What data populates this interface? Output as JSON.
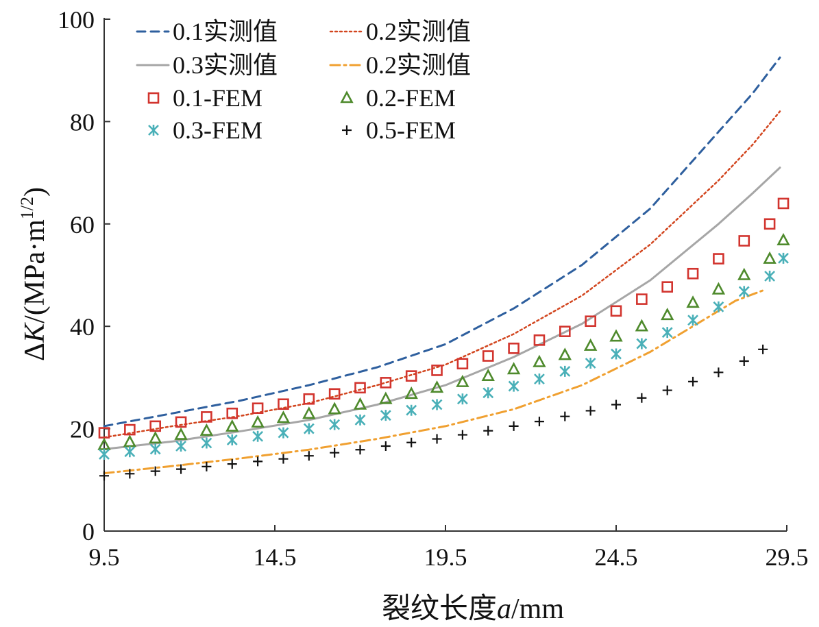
{
  "chart_data": {
    "type": "line",
    "title": "",
    "xlabel": "裂纹长度a/mm",
    "xlabel_parts": {
      "text": "裂纹长度",
      "var": "a",
      "unit": "/mm"
    },
    "ylabel": "ΔK/(MPa·m1/2)",
    "ylabel_parts": {
      "delta": "Δ",
      "var": "K",
      "unit": "/(MPa·m",
      "exp": "1/2",
      "close": ")"
    },
    "xlim": [
      9.5,
      29.5
    ],
    "ylim": [
      0,
      100
    ],
    "xticks": [
      "9.5",
      "14.5",
      "19.5",
      "24.5",
      "29.5"
    ],
    "yticks": [
      "0",
      "20",
      "40",
      "60",
      "80",
      "100"
    ],
    "grid": false,
    "legend_position": "top-left",
    "series": [
      {
        "name": "0.1实测值",
        "kind": "line",
        "style": "dash",
        "color": "#2e5f9e",
        "x": [
          9.5,
          11.5,
          13.5,
          15.5,
          17.5,
          19.5,
          21.5,
          23.5,
          25.5,
          27.5,
          28.5,
          29.3
        ],
        "y": [
          20.5,
          23.0,
          25.5,
          28.5,
          32.0,
          36.5,
          43.5,
          52.0,
          63.0,
          78.0,
          85.5,
          92.5
        ]
      },
      {
        "name": "0.2实测值",
        "kind": "line",
        "style": "dot",
        "color": "#d2451e",
        "x": [
          9.5,
          11.5,
          13.5,
          15.5,
          17.5,
          19.5,
          21.5,
          23.5,
          25.5,
          27.5,
          28.5,
          29.3
        ],
        "y": [
          18.3,
          20.5,
          22.5,
          25.0,
          28.5,
          32.5,
          38.5,
          46.0,
          56.0,
          68.5,
          75.5,
          82.0
        ]
      },
      {
        "name": "0.3实测值",
        "kind": "line",
        "style": "solid",
        "color": "#a6a6a6",
        "x": [
          9.5,
          11.5,
          13.5,
          15.5,
          17.5,
          19.5,
          21.5,
          23.5,
          25.5,
          27.5,
          28.5,
          29.3
        ],
        "y": [
          16.0,
          17.5,
          19.5,
          21.7,
          24.7,
          28.5,
          34.0,
          40.5,
          49.0,
          60.0,
          66.0,
          71.0
        ]
      },
      {
        "name": "0.2实测值",
        "kind": "line",
        "style": "dashdot",
        "color": "#f0a030",
        "x": [
          9.5,
          11.5,
          13.5,
          15.5,
          17.5,
          19.5,
          21.5,
          23.5,
          25.5,
          27.0,
          28.0,
          28.8
        ],
        "y": [
          11.3,
          12.7,
          14.2,
          15.9,
          18.0,
          20.5,
          23.8,
          28.5,
          35.0,
          41.0,
          45.0,
          47.0
        ]
      },
      {
        "name": "0.1-FEM",
        "kind": "marker",
        "marker": "square",
        "color": "#d2342e",
        "x": [
          9.5,
          10.25,
          11.0,
          11.75,
          12.5,
          13.25,
          14.0,
          14.75,
          15.5,
          16.25,
          17.0,
          17.75,
          18.5,
          19.25,
          20.0,
          20.75,
          21.5,
          22.25,
          23.0,
          23.75,
          24.5,
          25.25,
          26.0,
          26.75,
          27.5,
          28.25,
          29.0,
          29.4
        ],
        "y": [
          19.2,
          19.8,
          20.5,
          21.3,
          22.3,
          23.0,
          24.0,
          24.8,
          25.8,
          26.8,
          28.0,
          29.0,
          30.3,
          31.4,
          32.7,
          34.2,
          35.7,
          37.3,
          39.0,
          41.0,
          43.0,
          45.3,
          47.7,
          50.3,
          53.2,
          56.7,
          60.0,
          64.0
        ]
      },
      {
        "name": "0.2-FEM",
        "kind": "marker",
        "marker": "triangle",
        "color": "#4e8a2c",
        "x": [
          9.5,
          10.25,
          11.0,
          11.75,
          12.5,
          13.25,
          14.0,
          14.75,
          15.5,
          16.25,
          17.0,
          17.75,
          18.5,
          19.25,
          20.0,
          20.75,
          21.5,
          22.25,
          23.0,
          23.75,
          24.5,
          25.25,
          26.0,
          26.75,
          27.5,
          28.25,
          29.0,
          29.4
        ],
        "y": [
          16.8,
          17.4,
          18.1,
          18.8,
          19.6,
          20.4,
          21.2,
          22.1,
          22.9,
          23.8,
          24.7,
          25.8,
          26.8,
          28.0,
          29.1,
          30.3,
          31.6,
          33.0,
          34.4,
          36.2,
          38.0,
          40.0,
          42.2,
          44.6,
          47.2,
          50.0,
          53.2,
          56.8
        ]
      },
      {
        "name": "0.3-FEM",
        "kind": "marker",
        "marker": "asterisk",
        "color": "#4ab0b8",
        "x": [
          9.5,
          10.25,
          11.0,
          11.75,
          12.5,
          13.25,
          14.0,
          14.75,
          15.5,
          16.25,
          17.0,
          17.75,
          18.5,
          19.25,
          20.0,
          20.75,
          21.5,
          22.25,
          23.0,
          23.75,
          24.5,
          25.25,
          26.0,
          26.75,
          27.5,
          28.25,
          29.0,
          29.4
        ],
        "y": [
          15.0,
          15.5,
          16.0,
          16.6,
          17.2,
          17.8,
          18.5,
          19.2,
          20.0,
          20.8,
          21.7,
          22.6,
          23.6,
          24.7,
          25.8,
          27.0,
          28.3,
          29.7,
          31.2,
          32.8,
          34.6,
          36.6,
          38.8,
          41.2,
          43.8,
          46.8,
          49.8,
          53.3
        ]
      },
      {
        "name": "0.5-FEM",
        "kind": "marker",
        "marker": "plus",
        "color": "#111111",
        "x": [
          9.5,
          10.25,
          11.0,
          11.75,
          12.5,
          13.25,
          14.0,
          14.75,
          15.5,
          16.25,
          17.0,
          17.75,
          18.5,
          19.25,
          20.0,
          20.75,
          21.5,
          22.25,
          23.0,
          23.75,
          24.5,
          25.25,
          26.0,
          26.75,
          27.5,
          28.25,
          28.8
        ],
        "y": [
          10.8,
          11.2,
          11.7,
          12.1,
          12.6,
          13.1,
          13.6,
          14.1,
          14.7,
          15.3,
          15.9,
          16.6,
          17.3,
          18.0,
          18.8,
          19.6,
          20.5,
          21.4,
          22.4,
          23.5,
          24.7,
          26.0,
          27.5,
          29.2,
          31.0,
          33.2,
          35.5
        ]
      }
    ]
  }
}
